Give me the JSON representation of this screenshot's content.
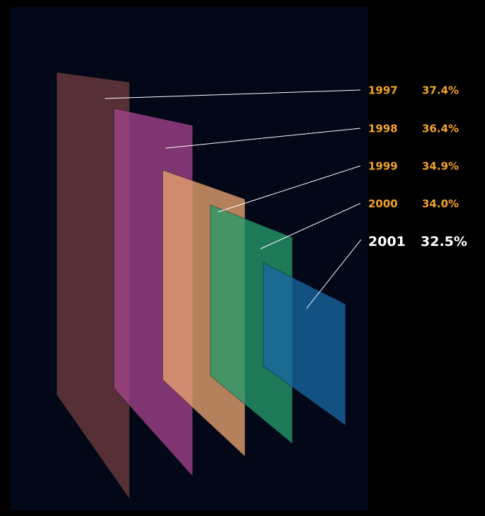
{
  "chart_data": {
    "type": "other",
    "title": "",
    "xlabel": "",
    "ylabel": "",
    "series": [
      {
        "year": "1997",
        "value": 37.4,
        "color": "#6e3c3e"
      },
      {
        "year": "1998",
        "value": 36.4,
        "color": "#a3438a"
      },
      {
        "year": "1999",
        "value": 34.9,
        "color": "#e8a370"
      },
      {
        "year": "2000",
        "value": 34.0,
        "color": "#259a6a"
      },
      {
        "year": "2001",
        "value": 32.5,
        "color": "#1a66a2"
      }
    ],
    "highlight": "2001"
  },
  "labels": [
    {
      "year": "1997",
      "pct": "37.4%"
    },
    {
      "year": "1998",
      "pct": "36.4%"
    },
    {
      "year": "1999",
      "pct": "34.9%"
    },
    {
      "year": "2000",
      "pct": "34.0%"
    },
    {
      "year": "2001",
      "pct": "32.5%"
    }
  ],
  "colors": {
    "background": "#000000",
    "panel": "#020818",
    "label_normal": "#f2a32a",
    "label_highlight": "#ffffff",
    "leader": "#ffffff"
  }
}
